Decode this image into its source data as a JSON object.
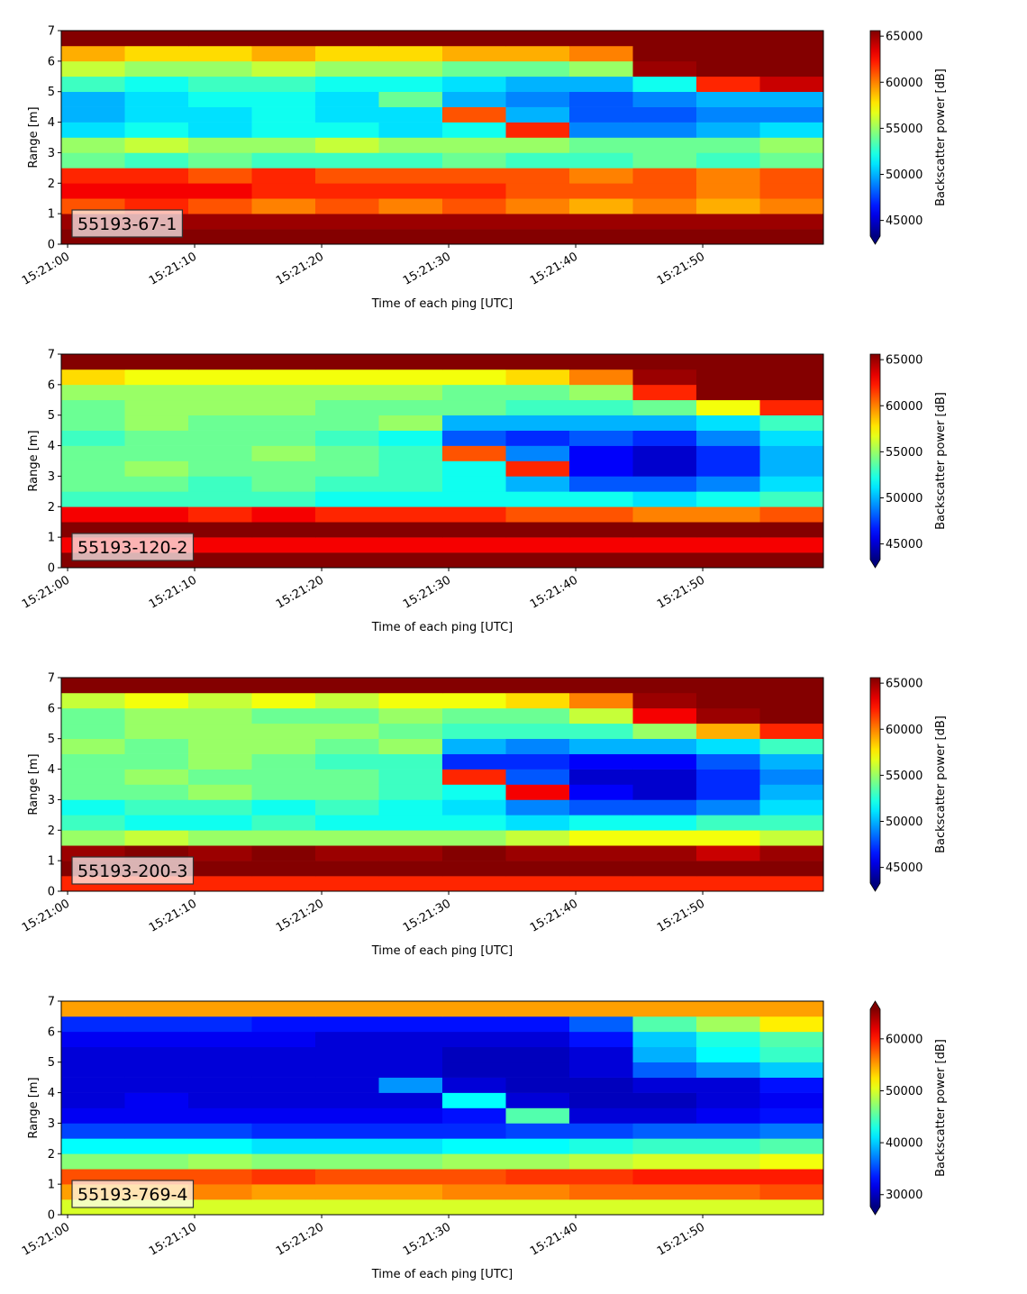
{
  "chart_data": [
    {
      "type": "heatmap",
      "annotation": "55193-67-1",
      "xlabel": "Time of each ping [UTC]",
      "ylabel": "Range [m]",
      "colorbar_label": "Backscatter power [dB]",
      "xlim": [
        -0.5,
        59.5
      ],
      "xticks": [
        {
          "value": 0,
          "label": "15:21:00"
        },
        {
          "value": 10,
          "label": "15:21:10"
        },
        {
          "value": 20,
          "label": "15:21:20"
        },
        {
          "value": 30,
          "label": "15:21:30"
        },
        {
          "value": 40,
          "label": "15:21:40"
        },
        {
          "value": 50,
          "label": "15:21:50"
        }
      ],
      "ylim": [
        0,
        7
      ],
      "yticks": [
        0,
        1,
        2,
        3,
        4,
        5,
        6,
        7
      ],
      "clim": [
        43300,
        65600
      ],
      "cticks": [
        45000,
        50000,
        55000,
        60000,
        65000
      ],
      "extend": "min",
      "colormap": "jet",
      "time_bins": [
        -0.5,
        4.5,
        9.5,
        14.5,
        19.5,
        24.5,
        29.5,
        34.5,
        39.5,
        44.5,
        49.5,
        54.5,
        59.5
      ],
      "range_bins": [
        0,
        0.5,
        1,
        1.5,
        2,
        2.5,
        3,
        3.5,
        4,
        4.5,
        5,
        5.5,
        6,
        6.5,
        7
      ],
      "z": [
        [
          65500,
          65500,
          65500,
          65500,
          65500,
          65500,
          65500,
          65500,
          65500,
          65500,
          65500,
          65500
        ],
        [
          65000,
          65000,
          65000,
          65000,
          65000,
          65000,
          65000,
          65000,
          65000,
          65000,
          65000,
          65000
        ],
        [
          61000,
          62000,
          61000,
          60000,
          61000,
          60000,
          61000,
          60000,
          59000,
          60000,
          59000,
          60000
        ],
        [
          63000,
          63000,
          63000,
          62000,
          62000,
          62000,
          62000,
          61000,
          61000,
          61000,
          60000,
          61000
        ],
        [
          62000,
          62000,
          61000,
          62000,
          61000,
          61000,
          61000,
          61000,
          60000,
          61000,
          60000,
          61000
        ],
        [
          54000,
          53000,
          54000,
          53000,
          53000,
          53000,
          54000,
          53000,
          53000,
          54000,
          53000,
          54000
        ],
        [
          55000,
          56000,
          55000,
          55000,
          56000,
          55000,
          55000,
          55000,
          54000,
          54000,
          54000,
          55000
        ],
        [
          51000,
          52000,
          51000,
          52000,
          52000,
          51000,
          52000,
          62000,
          49000,
          49000,
          50000,
          51000
        ],
        [
          50000,
          51000,
          51000,
          52000,
          51000,
          51000,
          61000,
          50000,
          48000,
          48000,
          49000,
          49000
        ],
        [
          50000,
          51000,
          52000,
          52000,
          51000,
          54000,
          50000,
          49000,
          48000,
          49000,
          50000,
          50000
        ],
        [
          53000,
          52000,
          53000,
          53000,
          52000,
          52000,
          51000,
          50000,
          50000,
          52000,
          62000,
          64000
        ],
        [
          56000,
          55000,
          55000,
          56000,
          55000,
          55000,
          54000,
          54000,
          55000,
          65000,
          65500,
          65500
        ],
        [
          59000,
          58000,
          58000,
          59000,
          58000,
          58000,
          59000,
          59000,
          60000,
          65500,
          65500,
          65500
        ],
        [
          65500,
          65500,
          65500,
          65500,
          65500,
          65500,
          65500,
          65500,
          65500,
          65500,
          65500,
          65500
        ]
      ]
    },
    {
      "type": "heatmap",
      "annotation": "55193-120-2",
      "xlabel": "Time of each ping [UTC]",
      "ylabel": "Range [m]",
      "colorbar_label": "Backscatter power [dB]",
      "xlim": [
        -0.5,
        59.5
      ],
      "xticks": [
        {
          "value": 0,
          "label": "15:21:00"
        },
        {
          "value": 10,
          "label": "15:21:10"
        },
        {
          "value": 20,
          "label": "15:21:20"
        },
        {
          "value": 30,
          "label": "15:21:30"
        },
        {
          "value": 40,
          "label": "15:21:40"
        },
        {
          "value": 50,
          "label": "15:21:50"
        }
      ],
      "ylim": [
        0,
        7
      ],
      "yticks": [
        0,
        1,
        2,
        3,
        4,
        5,
        6,
        7
      ],
      "clim": [
        43300,
        65600
      ],
      "cticks": [
        45000,
        50000,
        55000,
        60000,
        65000
      ],
      "extend": "min",
      "colormap": "jet",
      "time_bins": [
        -0.5,
        4.5,
        9.5,
        14.5,
        19.5,
        24.5,
        29.5,
        34.5,
        39.5,
        44.5,
        49.5,
        54.5,
        59.5
      ],
      "range_bins": [
        0,
        0.5,
        1,
        1.5,
        2,
        2.5,
        3,
        3.5,
        4,
        4.5,
        5,
        5.5,
        6,
        6.5,
        7
      ],
      "z": [
        [
          65500,
          65500,
          65500,
          65500,
          65500,
          65500,
          65500,
          65500,
          65500,
          65500,
          65500,
          65500
        ],
        [
          63000,
          63000,
          63000,
          63000,
          63000,
          63000,
          63000,
          63000,
          63000,
          63000,
          63000,
          63000
        ],
        [
          65500,
          65500,
          65500,
          65500,
          65500,
          65500,
          65500,
          65500,
          65500,
          65500,
          65500,
          65500
        ],
        [
          63000,
          63000,
          62000,
          63000,
          62000,
          62000,
          62000,
          61000,
          61000,
          60000,
          60000,
          61000
        ],
        [
          53000,
          53000,
          53000,
          53000,
          52000,
          52000,
          52000,
          52000,
          52000,
          51000,
          52000,
          53000
        ],
        [
          54000,
          54000,
          53000,
          54000,
          53000,
          53000,
          52000,
          50000,
          48000,
          48000,
          49000,
          51000
        ],
        [
          54000,
          55000,
          54000,
          54000,
          54000,
          53000,
          52000,
          62000,
          46000,
          45000,
          47000,
          50000
        ],
        [
          54000,
          54000,
          54000,
          55000,
          54000,
          53000,
          61000,
          49000,
          46000,
          45000,
          47000,
          50000
        ],
        [
          53000,
          54000,
          54000,
          54000,
          53000,
          52000,
          48000,
          47000,
          48000,
          47000,
          49000,
          51000
        ],
        [
          54000,
          55000,
          54000,
          54000,
          54000,
          55000,
          50000,
          50000,
          50000,
          50000,
          51000,
          53000
        ],
        [
          54000,
          55000,
          55000,
          55000,
          54000,
          54000,
          54000,
          53000,
          53000,
          54000,
          57000,
          62000
        ],
        [
          55000,
          55000,
          55000,
          55000,
          55000,
          55000,
          54000,
          54000,
          55000,
          62000,
          65500,
          65500
        ],
        [
          58000,
          57000,
          57000,
          57000,
          57000,
          57000,
          57000,
          58000,
          60000,
          65000,
          65500,
          65500
        ],
        [
          65500,
          65500,
          65500,
          65500,
          65500,
          65500,
          65500,
          65500,
          65500,
          65500,
          65500,
          65500
        ]
      ]
    },
    {
      "type": "heatmap",
      "annotation": "55193-200-3",
      "xlabel": "Time of each ping [UTC]",
      "ylabel": "Range [m]",
      "colorbar_label": "Backscatter power [dB]",
      "xlim": [
        -0.5,
        59.5
      ],
      "xticks": [
        {
          "value": 0,
          "label": "15:21:00"
        },
        {
          "value": 10,
          "label": "15:21:10"
        },
        {
          "value": 20,
          "label": "15:21:20"
        },
        {
          "value": 30,
          "label": "15:21:30"
        },
        {
          "value": 40,
          "label": "15:21:40"
        },
        {
          "value": 50,
          "label": "15:21:50"
        }
      ],
      "ylim": [
        0,
        7
      ],
      "yticks": [
        0,
        1,
        2,
        3,
        4,
        5,
        6,
        7
      ],
      "clim": [
        43300,
        65600
      ],
      "cticks": [
        45000,
        50000,
        55000,
        60000,
        65000
      ],
      "extend": "min",
      "colormap": "jet",
      "time_bins": [
        -0.5,
        4.5,
        9.5,
        14.5,
        19.5,
        24.5,
        29.5,
        34.5,
        39.5,
        44.5,
        49.5,
        54.5,
        59.5
      ],
      "range_bins": [
        0,
        0.5,
        1,
        1.5,
        2,
        2.5,
        3,
        3.5,
        4,
        4.5,
        5,
        5.5,
        6,
        6.5,
        7
      ],
      "z": [
        [
          62000,
          62000,
          62000,
          62000,
          62000,
          62000,
          62000,
          62000,
          62000,
          62000,
          62000,
          62000
        ],
        [
          65500,
          65500,
          65500,
          65500,
          65500,
          65500,
          65500,
          65500,
          65500,
          65500,
          65500,
          65500
        ],
        [
          65000,
          65500,
          65000,
          65500,
          65000,
          65000,
          65500,
          65000,
          65000,
          65000,
          64000,
          65000
        ],
        [
          55000,
          56000,
          55000,
          55000,
          55000,
          55000,
          55000,
          56000,
          57000,
          57000,
          57000,
          56000
        ],
        [
          53000,
          52000,
          52000,
          53000,
          52000,
          52000,
          52000,
          51000,
          52000,
          52000,
          53000,
          53000
        ],
        [
          52000,
          53000,
          53000,
          52000,
          53000,
          52000,
          51000,
          49000,
          48000,
          48000,
          49000,
          51000
        ],
        [
          54000,
          54000,
          55000,
          54000,
          54000,
          53000,
          52000,
          63000,
          46000,
          45000,
          47000,
          50000
        ],
        [
          54000,
          55000,
          54000,
          54000,
          54000,
          53000,
          62000,
          48000,
          45000,
          45000,
          47000,
          49000
        ],
        [
          54000,
          54000,
          55000,
          54000,
          53000,
          53000,
          47000,
          47000,
          46000,
          46000,
          48000,
          50000
        ],
        [
          55000,
          54000,
          55000,
          55000,
          54000,
          55000,
          50000,
          49000,
          50000,
          50000,
          51000,
          53000
        ],
        [
          54000,
          55000,
          55000,
          55000,
          55000,
          54000,
          53000,
          53000,
          53000,
          55000,
          59000,
          62000
        ],
        [
          54000,
          55000,
          55000,
          54000,
          54000,
          55000,
          54000,
          54000,
          56000,
          63000,
          65000,
          65500
        ],
        [
          56000,
          57000,
          56000,
          57000,
          56000,
          57000,
          57000,
          58000,
          60000,
          65000,
          65500,
          65500
        ],
        [
          65500,
          65500,
          65500,
          65500,
          65500,
          65500,
          65500,
          65500,
          65500,
          65500,
          65500,
          65500
        ]
      ]
    },
    {
      "type": "heatmap",
      "annotation": "55193-769-4",
      "xlabel": "Time of each ping [UTC]",
      "ylabel": "Range [m]",
      "colorbar_label": "Backscatter power [dB]",
      "xlim": [
        -0.5,
        59.5
      ],
      "xticks": [
        {
          "value": 0,
          "label": "15:21:00"
        },
        {
          "value": 10,
          "label": "15:21:10"
        },
        {
          "value": 20,
          "label": "15:21:20"
        },
        {
          "value": 30,
          "label": "15:21:30"
        },
        {
          "value": 40,
          "label": "15:21:40"
        },
        {
          "value": 50,
          "label": "15:21:50"
        }
      ],
      "ylim": [
        0,
        7
      ],
      "yticks": [
        0,
        1,
        2,
        3,
        4,
        5,
        6,
        7
      ],
      "clim": [
        27700,
        65700
      ],
      "cticks": [
        30000,
        40000,
        50000,
        60000
      ],
      "extend": "both",
      "colormap": "jet",
      "time_bins": [
        -0.5,
        4.5,
        9.5,
        14.5,
        19.5,
        24.5,
        29.5,
        34.5,
        39.5,
        44.5,
        49.5,
        54.5,
        59.5
      ],
      "range_bins": [
        0,
        0.5,
        1,
        1.5,
        2,
        2.5,
        3,
        3.5,
        4,
        4.5,
        5,
        5.5,
        6,
        6.5,
        7
      ],
      "z": [
        [
          50000,
          50000,
          50000,
          50000,
          50000,
          50000,
          50000,
          50000,
          50000,
          50000,
          50000,
          50000
        ],
        [
          55000,
          55000,
          56000,
          55000,
          55000,
          55000,
          56000,
          56000,
          57000,
          57000,
          57000,
          58000
        ],
        [
          58000,
          58000,
          58000,
          59000,
          58000,
          58000,
          58000,
          59000,
          59000,
          60000,
          60000,
          60000
        ],
        [
          47000,
          47000,
          48000,
          47000,
          47000,
          47000,
          48000,
          48000,
          49000,
          50000,
          50000,
          51000
        ],
        [
          42000,
          42000,
          42000,
          41000,
          41000,
          41000,
          42000,
          42000,
          43000,
          44000,
          44000,
          45000
        ],
        [
          35000,
          35000,
          35000,
          34000,
          34000,
          34000,
          34000,
          35000,
          35000,
          36000,
          36000,
          37000
        ],
        [
          32000,
          32000,
          32000,
          32000,
          32000,
          32000,
          33000,
          45000,
          31000,
          31000,
          32000,
          33000
        ],
        [
          31000,
          32000,
          31000,
          31000,
          31000,
          31000,
          42000,
          31000,
          30000,
          30000,
          31000,
          32000
        ],
        [
          31000,
          31000,
          31000,
          31000,
          31000,
          38000,
          31000,
          30000,
          30000,
          31000,
          31000,
          33000
        ],
        [
          31000,
          31000,
          31000,
          31000,
          31000,
          31000,
          30000,
          30000,
          31000,
          36000,
          38000,
          40000
        ],
        [
          31000,
          31000,
          31000,
          31000,
          31000,
          31000,
          30000,
          30000,
          31000,
          39000,
          42000,
          44000
        ],
        [
          32000,
          32000,
          32000,
          32000,
          31000,
          31000,
          31000,
          31000,
          33000,
          40000,
          43000,
          45000
        ],
        [
          34000,
          34000,
          34000,
          33000,
          33000,
          33000,
          33000,
          33000,
          36000,
          45000,
          48000,
          52000
        ],
        [
          55000,
          55000,
          55000,
          55000,
          55000,
          55000,
          55000,
          55000,
          55000,
          55000,
          55000,
          55000
        ]
      ]
    }
  ]
}
